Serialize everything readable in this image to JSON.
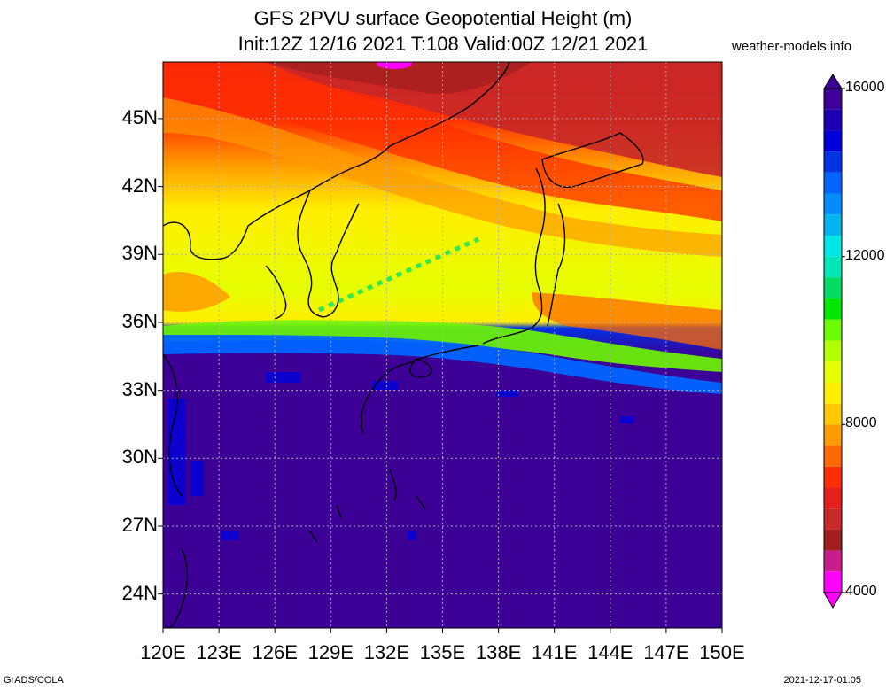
{
  "header": {
    "title_line1": "GFS 2PVU surface Geopotential Height (m)",
    "title_line2": "Init:12Z 12/16 2021 T:108 Valid:00Z 12/21 2021",
    "source": "weather-models.info"
  },
  "axes": {
    "lat_labels": [
      "45N",
      "42N",
      "39N",
      "36N",
      "33N",
      "30N",
      "27N",
      "24N"
    ],
    "lon_labels": [
      "120E",
      "123E",
      "126E",
      "129E",
      "132E",
      "135E",
      "138E",
      "141E",
      "144E",
      "147E",
      "150E"
    ],
    "lat_range": [
      22.5,
      47.5
    ],
    "lon_range": [
      120,
      150
    ]
  },
  "colorbar": {
    "labels": [
      "16000",
      "12000",
      "8000",
      "4000"
    ],
    "range": [
      4000,
      16000
    ],
    "colors": [
      "#ff00ff",
      "#c81e8c",
      "#a01e1e",
      "#c82828",
      "#e61e1e",
      "#ff2e00",
      "#ff6a00",
      "#ff9a00",
      "#ffc800",
      "#ffee00",
      "#e6ff00",
      "#b4ff00",
      "#6efa00",
      "#00e600",
      "#00dc64",
      "#00e6b4",
      "#00e6e6",
      "#00b4f0",
      "#008cff",
      "#0064ff",
      "#0032e6",
      "#0000dc",
      "#1e00b4",
      "#3c0096"
    ]
  },
  "footer": {
    "left": "GrADS/COLA",
    "right": "2021-12-17-01:05"
  },
  "legend_colors": {
    "deep_violet": "#3c0096",
    "blue": "#1e32ff",
    "green": "#00e600",
    "yellow": "#ffee00",
    "orange": "#ff9a00",
    "red": "#ff2e00",
    "dark_red": "#c82828",
    "magenta": "#ff00ff"
  }
}
